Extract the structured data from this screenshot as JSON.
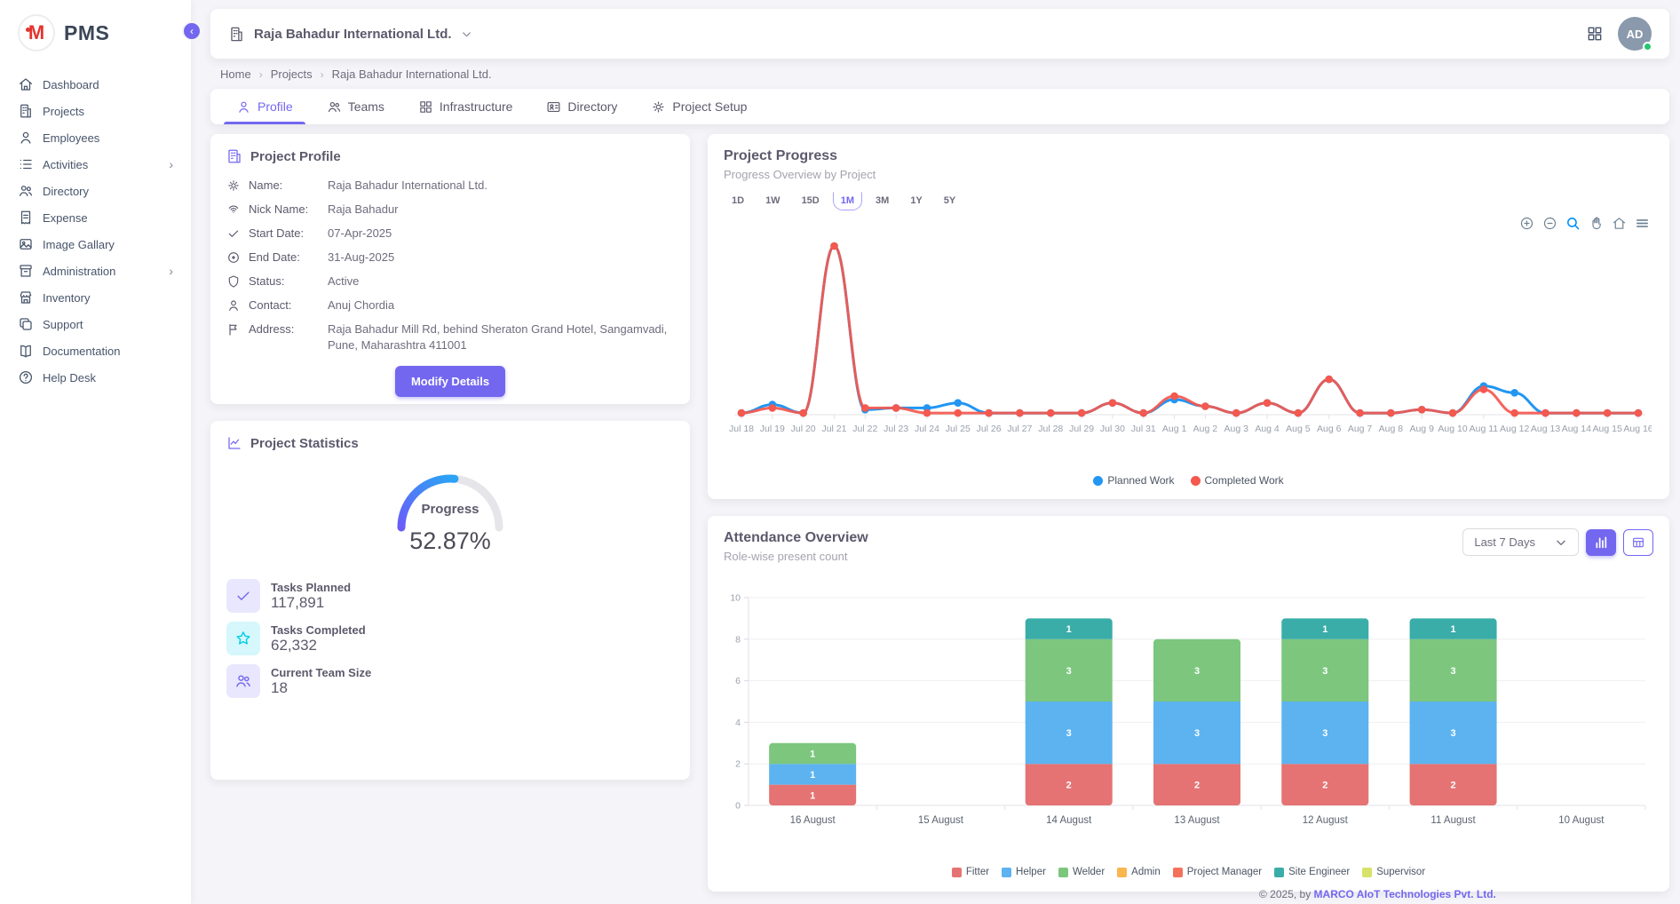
{
  "app": {
    "name": "PMS",
    "logo_letter": "M"
  },
  "sidebar": {
    "items": [
      {
        "label": "Dashboard",
        "icon": "home",
        "has_children": false
      },
      {
        "label": "Projects",
        "icon": "building",
        "has_children": false
      },
      {
        "label": "Employees",
        "icon": "user",
        "has_children": false
      },
      {
        "label": "Activities",
        "icon": "list",
        "has_children": true
      },
      {
        "label": "Directory",
        "icon": "users",
        "has_children": false
      },
      {
        "label": "Expense",
        "icon": "receipt",
        "has_children": false
      },
      {
        "label": "Image Gallary",
        "icon": "image",
        "has_children": false
      },
      {
        "label": "Administration",
        "icon": "archive",
        "has_children": true
      },
      {
        "label": "Inventory",
        "icon": "store",
        "has_children": false
      },
      {
        "label": "Support",
        "icon": "copies",
        "has_children": false
      },
      {
        "label": "Documentation",
        "icon": "book",
        "has_children": false
      },
      {
        "label": "Help Desk",
        "icon": "help",
        "has_children": false
      }
    ]
  },
  "header": {
    "company": "Raja Bahadur International Ltd.",
    "avatar": "AD"
  },
  "breadcrumb": {
    "items": [
      "Home",
      "Projects",
      "Raja Bahadur International Ltd."
    ]
  },
  "tabs": [
    {
      "label": "Profile",
      "icon": "user",
      "active": true
    },
    {
      "label": "Teams",
      "icon": "users",
      "active": false
    },
    {
      "label": "Infrastructure",
      "icon": "grid4",
      "active": false
    },
    {
      "label": "Directory",
      "icon": "card",
      "active": false
    },
    {
      "label": "Project Setup",
      "icon": "gear",
      "active": false
    }
  ],
  "profile_card": {
    "title": "Project Profile",
    "fields": [
      {
        "icon": "gear",
        "label": "Name:",
        "value": "Raja Bahadur International Ltd."
      },
      {
        "icon": "fingerprint",
        "label": "Nick Name:",
        "value": "Raja Bahadur"
      },
      {
        "icon": "check",
        "label": "Start Date:",
        "value": "07-Apr-2025"
      },
      {
        "icon": "circle-dot",
        "label": "End Date:",
        "value": "31-Aug-2025"
      },
      {
        "icon": "shield",
        "label": "Status:",
        "value": "Active"
      },
      {
        "icon": "user",
        "label": "Contact:",
        "value": "Anuj Chordia"
      },
      {
        "icon": "flag",
        "label": "Address:",
        "value": "Raja Bahadur Mill Rd, behind Sheraton Grand Hotel, Sangamvadi, Pune, Maharashtra 411001"
      }
    ],
    "button_label": "Modify Details"
  },
  "stats_card": {
    "title": "Project Statistics",
    "gauge": {
      "label": "Progress",
      "display": "52.87%",
      "percent": 52.87
    },
    "stats": [
      {
        "icon": "check",
        "tone": "purple",
        "label": "Tasks Planned",
        "value": "117,891"
      },
      {
        "icon": "star",
        "tone": "cyan",
        "label": "Tasks Completed",
        "value": "62,332"
      },
      {
        "icon": "users",
        "tone": "purple",
        "label": "Current Team Size",
        "value": "18"
      }
    ]
  },
  "progress_card": {
    "title": "Project Progress",
    "subtitle": "Progress Overview by Project",
    "ranges": [
      "1D",
      "1W",
      "15D",
      "1M",
      "3M",
      "1Y",
      "5Y"
    ],
    "active_range": "1M",
    "toolbar": [
      "zoom-in",
      "zoom-out",
      "selection-zoom",
      "pan",
      "reset-home",
      "menu"
    ]
  },
  "attendance_card": {
    "title": "Attendance Overview",
    "subtitle": "Role-wise present count",
    "filter_value": "Last 7 Days",
    "view_toggles": [
      "bar-view",
      "table-view"
    ],
    "active_toggle": "bar-view"
  },
  "footer": {
    "copyright": "© 2025, by ",
    "company": "MARCO AIoT Technologies Pvt. Ltd."
  },
  "colors": {
    "primary": "#7367f0",
    "planned": "#2196f3",
    "completed": "#f4584e",
    "success_dot": "#28c76f"
  },
  "chart_data": [
    {
      "type": "line",
      "title": "Project Progress",
      "x": [
        "Jul 18",
        "Jul 19",
        "Jul 20",
        "Jul 21",
        "Jul 22",
        "Jul 23",
        "Jul 24",
        "Jul 25",
        "Jul 26",
        "Jul 27",
        "Jul 28",
        "Jul 29",
        "Jul 30",
        "Jul 31",
        "Aug 1",
        "Aug 2",
        "Aug 3",
        "Aug 4",
        "Aug 5",
        "Aug 6",
        "Aug 7",
        "Aug 8",
        "Aug 9",
        "Aug 10",
        "Aug 11",
        "Aug 12",
        "Aug 13",
        "Aug 14",
        "Aug 15",
        "Aug 16"
      ],
      "series": [
        {
          "name": "Planned Work",
          "color": "#2196f3",
          "values": [
            1,
            6,
            1,
            100,
            3,
            4,
            4,
            7,
            1,
            1,
            1,
            1,
            7,
            1,
            9,
            5,
            1,
            7,
            1,
            21,
            1,
            1,
            3,
            1,
            17,
            13,
            1,
            1,
            1,
            1
          ]
        },
        {
          "name": "Completed Work",
          "color": "#f4584e",
          "values": [
            1,
            4,
            1,
            100,
            4,
            4,
            1,
            1,
            1,
            1,
            1,
            1,
            7,
            1,
            11,
            5,
            1,
            7,
            1,
            21,
            1,
            1,
            3,
            1,
            15,
            1,
            1,
            1,
            1,
            1
          ]
        }
      ],
      "ylim": [
        0,
        105
      ],
      "grid": false,
      "legend_position": "bottom"
    },
    {
      "type": "bar",
      "stacked": true,
      "title": "Attendance Overview",
      "categories": [
        "16 August",
        "15 August",
        "14 August",
        "13 August",
        "12 August",
        "11 August",
        "10 August"
      ],
      "series": [
        {
          "name": "Fitter",
          "color": "#e57373",
          "values": [
            1,
            0,
            2,
            2,
            2,
            2,
            0
          ]
        },
        {
          "name": "Helper",
          "color": "#5cb3f0",
          "values": [
            1,
            0,
            3,
            3,
            3,
            3,
            0
          ]
        },
        {
          "name": "Welder",
          "color": "#7cc67e",
          "values": [
            1,
            0,
            3,
            3,
            3,
            3,
            0
          ]
        },
        {
          "name": "Admin",
          "color": "#f9b64e",
          "values": [
            0,
            0,
            0,
            0,
            0,
            0,
            0
          ]
        },
        {
          "name": "Project Manager",
          "color": "#f4725c",
          "values": [
            0,
            0,
            0,
            0,
            0,
            0,
            0
          ]
        },
        {
          "name": "Site Engineer",
          "color": "#3aada9",
          "values": [
            0,
            0,
            1,
            0,
            1,
            1,
            0
          ]
        },
        {
          "name": "Supervisor",
          "color": "#d7e26b",
          "values": [
            0,
            0,
            0,
            0,
            0,
            0,
            0
          ]
        }
      ],
      "ylim": [
        0,
        10
      ],
      "yticks": [
        0,
        2,
        4,
        6,
        8,
        10
      ],
      "grid": true,
      "legend_position": "bottom"
    }
  ]
}
